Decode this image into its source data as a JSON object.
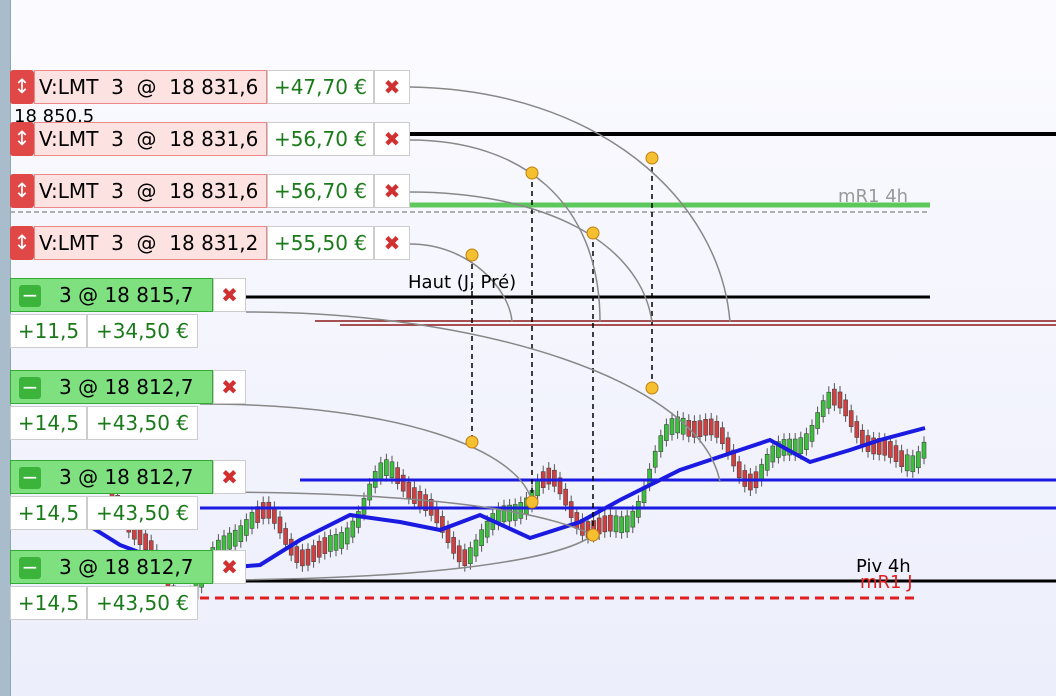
{
  "price_label": "18 850,5",
  "orders": [
    {
      "label": "V:LMT  3  @  18 831,6",
      "pnl": "+47,70 €"
    },
    {
      "label": "V:LMT  3  @  18 831,6",
      "pnl": "+56,70 €"
    },
    {
      "label": "V:LMT  3  @  18 831,6",
      "pnl": "+56,70 €"
    },
    {
      "label": "V:LMT  3  @  18 831,2",
      "pnl": "+55,50 €"
    }
  ],
  "positions": [
    {
      "label": "3 @ 18 815,7",
      "points": "+11,5",
      "pnl": "+34,50 €"
    },
    {
      "label": "3 @ 18 812,7",
      "points": "+14,5",
      "pnl": "+43,50 €"
    },
    {
      "label": "3 @ 18 812,7",
      "points": "+14,5",
      "pnl": "+43,50 €"
    },
    {
      "label": "3 @ 18 812,7",
      "points": "+14,5",
      "pnl": "+43,50 €"
    }
  ],
  "levels": [
    "mR1 4h",
    "Haut (J, Pré)",
    "Piv 4h",
    "mR1 J"
  ]
}
